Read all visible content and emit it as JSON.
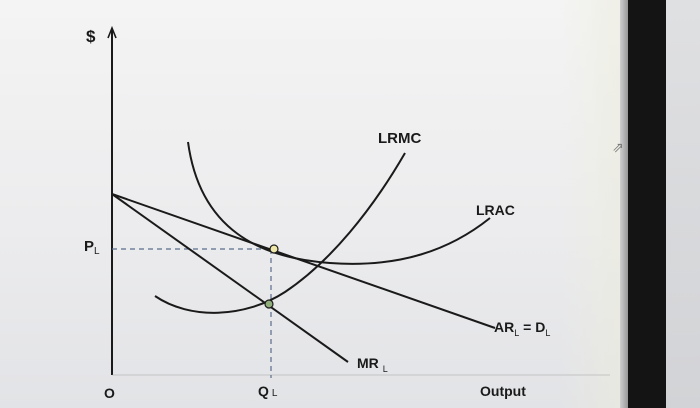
{
  "axes": {
    "y_symbol": "$",
    "origin": "O",
    "x_label": "Output"
  },
  "price": {
    "main": "P",
    "sub": "L"
  },
  "quantity": {
    "main": "Q",
    "sub": "L"
  },
  "curves": {
    "lrmc": "LRMC",
    "lrac": "LRAC",
    "demand": {
      "ar": "AR",
      "ar_sub": "L",
      "eq": " = D",
      "d_sub": "L"
    },
    "mr": {
      "main": "MR",
      "sub": "L"
    }
  },
  "colors": {
    "ink": "#1a1a1a",
    "dash": "#5a6c8c",
    "point_fill": "#efe7a8",
    "bezel": "#141414"
  }
}
